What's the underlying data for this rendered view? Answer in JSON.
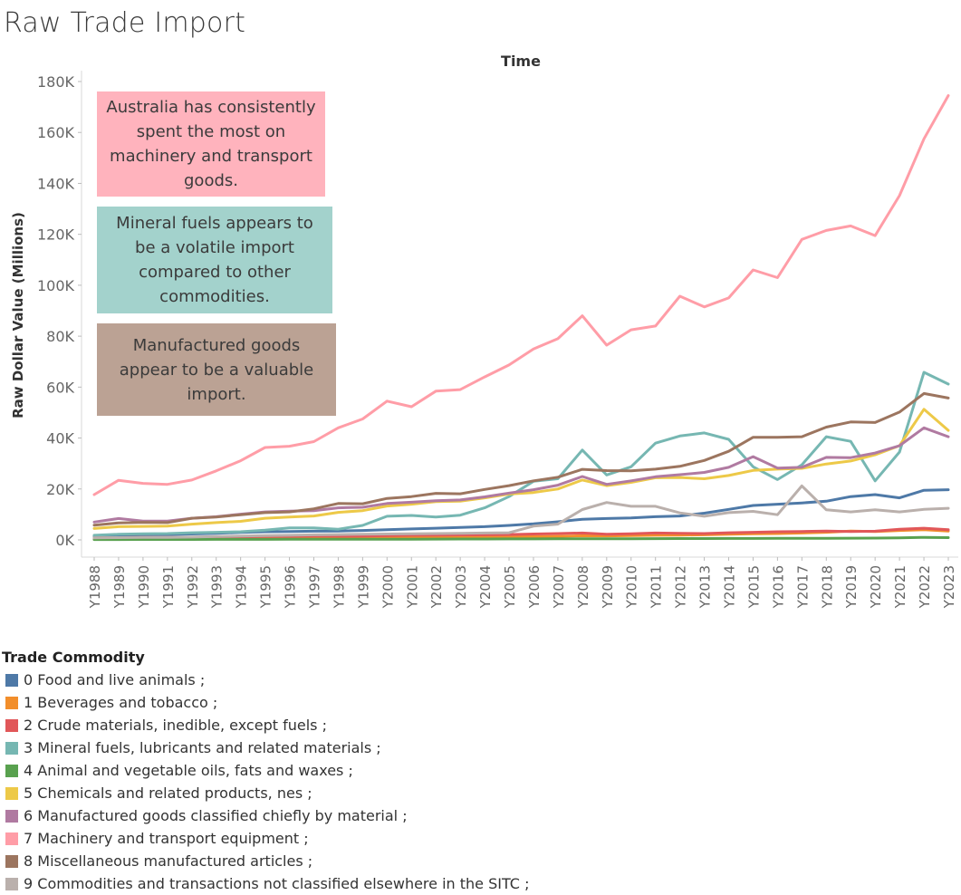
{
  "title": "Raw Trade Import",
  "chart_data": {
    "type": "line",
    "title": "Raw Trade Import",
    "xlabel": "Time",
    "ylabel": "Raw Dollar Value (Millions)",
    "ylim": [
      0,
      180000
    ],
    "yticks": [
      0,
      20000,
      40000,
      60000,
      80000,
      100000,
      120000,
      140000,
      160000,
      180000
    ],
    "yticklabels": [
      "0K",
      "20K",
      "40K",
      "60K",
      "80K",
      "100K",
      "120K",
      "140K",
      "160K",
      "180K"
    ],
    "categories": [
      "Y1988",
      "Y1989",
      "Y1990",
      "Y1991",
      "Y1992",
      "Y1993",
      "Y1994",
      "Y1995",
      "Y1996",
      "Y1997",
      "Y1998",
      "Y1999",
      "Y2000",
      "Y2001",
      "Y2002",
      "Y2003",
      "Y2004",
      "Y2005",
      "Y2006",
      "Y2007",
      "Y2008",
      "Y2009",
      "Y2010",
      "Y2011",
      "Y2012",
      "Y2013",
      "Y2014",
      "Y2015",
      "Y2016",
      "Y2017",
      "Y2018",
      "Y2019",
      "Y2020",
      "Y2021",
      "Y2022",
      "Y2023"
    ],
    "legend_title": "Trade Commodity",
    "series": [
      {
        "name": "0 Food and live animals ;",
        "color": "#4e79a7",
        "values": [
          1500,
          1900,
          2000,
          2100,
          2300,
          2600,
          2900,
          3200,
          3300,
          3400,
          3500,
          3700,
          4000,
          4300,
          4600,
          4900,
          5200,
          5700,
          6300,
          7100,
          8100,
          8400,
          8600,
          9100,
          9400,
          10500,
          12000,
          13500,
          14000,
          14500,
          15200,
          17000,
          17800,
          16500,
          19500,
          19700
        ]
      },
      {
        "name": "1 Beverages and tobacco ;",
        "color": "#f28e2b",
        "values": [
          300,
          350,
          400,
          420,
          450,
          500,
          550,
          600,
          650,
          700,
          750,
          800,
          900,
          1000,
          1050,
          1100,
          1150,
          1200,
          1300,
          1400,
          1600,
          1550,
          1700,
          1800,
          1900,
          2000,
          2200,
          2400,
          2500,
          2700,
          3000,
          3500,
          3300,
          3700,
          4000,
          3500
        ]
      },
      {
        "name": "2 Crude materials, inedible, except fuels ;",
        "color": "#e15759",
        "values": [
          800,
          900,
          950,
          950,
          1000,
          1100,
          1200,
          1350,
          1400,
          1500,
          1450,
          1500,
          1700,
          1800,
          1900,
          1950,
          2000,
          2100,
          2300,
          2500,
          2700,
          2200,
          2400,
          2700,
          2600,
          2500,
          2800,
          3000,
          3200,
          3300,
          3500,
          3300,
          3400,
          4200,
          4600,
          4000
        ]
      },
      {
        "name": "3 Mineral fuels, lubricants and related materials ;",
        "color": "#76b7b2",
        "values": [
          1800,
          2200,
          2400,
          2500,
          2800,
          3000,
          3200,
          3800,
          4700,
          4700,
          4200,
          5700,
          9300,
          9600,
          9000,
          9700,
          12600,
          17000,
          23000,
          24000,
          35300,
          25500,
          28700,
          38000,
          40800,
          42000,
          39500,
          28700,
          23700,
          29500,
          40500,
          38700,
          23200,
          34500,
          65800,
          61200
        ]
      },
      {
        "name": "4 Animal and vegetable oils, fats and waxes ;",
        "color": "#59a14f",
        "values": [
          150,
          160,
          170,
          180,
          190,
          200,
          210,
          230,
          240,
          250,
          260,
          270,
          290,
          300,
          320,
          340,
          360,
          380,
          400,
          420,
          480,
          450,
          470,
          500,
          520,
          540,
          560,
          580,
          600,
          620,
          650,
          680,
          700,
          800,
          1000,
          900
        ]
      },
      {
        "name": "5 Chemicals and related products, nes ;",
        "color": "#edc948",
        "values": [
          4500,
          5200,
          5300,
          5400,
          6200,
          6800,
          7300,
          8500,
          9000,
          9400,
          10800,
          11500,
          13300,
          14000,
          15000,
          15200,
          16500,
          18000,
          18600,
          20000,
          23500,
          21300,
          22600,
          24400,
          24500,
          24000,
          25300,
          27300,
          27800,
          28100,
          29800,
          31000,
          33400,
          37000,
          51300,
          43000
        ]
      },
      {
        "name": "6 Manufactured goods classified chiefly by material ;",
        "color": "#b07aa1",
        "values": [
          7000,
          8400,
          7400,
          7400,
          8500,
          9100,
          10100,
          11000,
          11300,
          11500,
          12600,
          12800,
          14300,
          14800,
          15400,
          15700,
          16900,
          18400,
          19700,
          21500,
          24900,
          21800,
          23200,
          24800,
          25600,
          26500,
          28500,
          32700,
          28200,
          28500,
          32400,
          32300,
          34100,
          37000,
          44000,
          40500
        ]
      },
      {
        "name": "7 Machinery and transport equipment ;",
        "color": "#ff9da7",
        "values": [
          17800,
          23400,
          22200,
          21800,
          23500,
          27100,
          31100,
          36300,
          36800,
          38600,
          44000,
          47500,
          54500,
          52300,
          58400,
          59000,
          64000,
          68700,
          75000,
          79000,
          88000,
          76500,
          82500,
          84000,
          95700,
          91500,
          95000,
          106000,
          103000,
          118000,
          121500,
          123300,
          119500,
          135200,
          157500,
          174500
        ]
      },
      {
        "name": "8 Miscellaneous manufactured articles ;",
        "color": "#9c755f",
        "values": [
          5800,
          6700,
          6900,
          6800,
          8500,
          9000,
          9900,
          10700,
          11000,
          12200,
          14300,
          14200,
          16300,
          17000,
          18300,
          18100,
          19800,
          21300,
          23200,
          24600,
          27700,
          27200,
          27100,
          27800,
          28900,
          31200,
          34800,
          40300,
          40300,
          40500,
          44300,
          46300,
          46100,
          50200,
          57500,
          55700
        ]
      },
      {
        "name": "9 Commodities and transactions not classified elsewhere in the SITC ;",
        "color": "#bab0ac",
        "values": [
          800,
          900,
          950,
          1000,
          1100,
          1300,
          1500,
          1700,
          1800,
          2000,
          2100,
          2200,
          2300,
          2400,
          2500,
          2600,
          2700,
          2800,
          5400,
          6200,
          11900,
          14700,
          13200,
          13200,
          10600,
          9300,
          10700,
          11200,
          9900,
          21200,
          11800,
          11000,
          11800,
          11000,
          12000,
          12400
        ]
      }
    ],
    "annotations": [
      {
        "text": "Australia has consistently spent the most on machinery and transport goods.",
        "color": "#ffb3bd"
      },
      {
        "text": "Mineral fuels appears to be a volatile import compared to other commodities.",
        "color": "#a3d2cc"
      },
      {
        "text": "Manufactured goods appear to be a valuable import.",
        "color": "#bba294"
      }
    ]
  }
}
